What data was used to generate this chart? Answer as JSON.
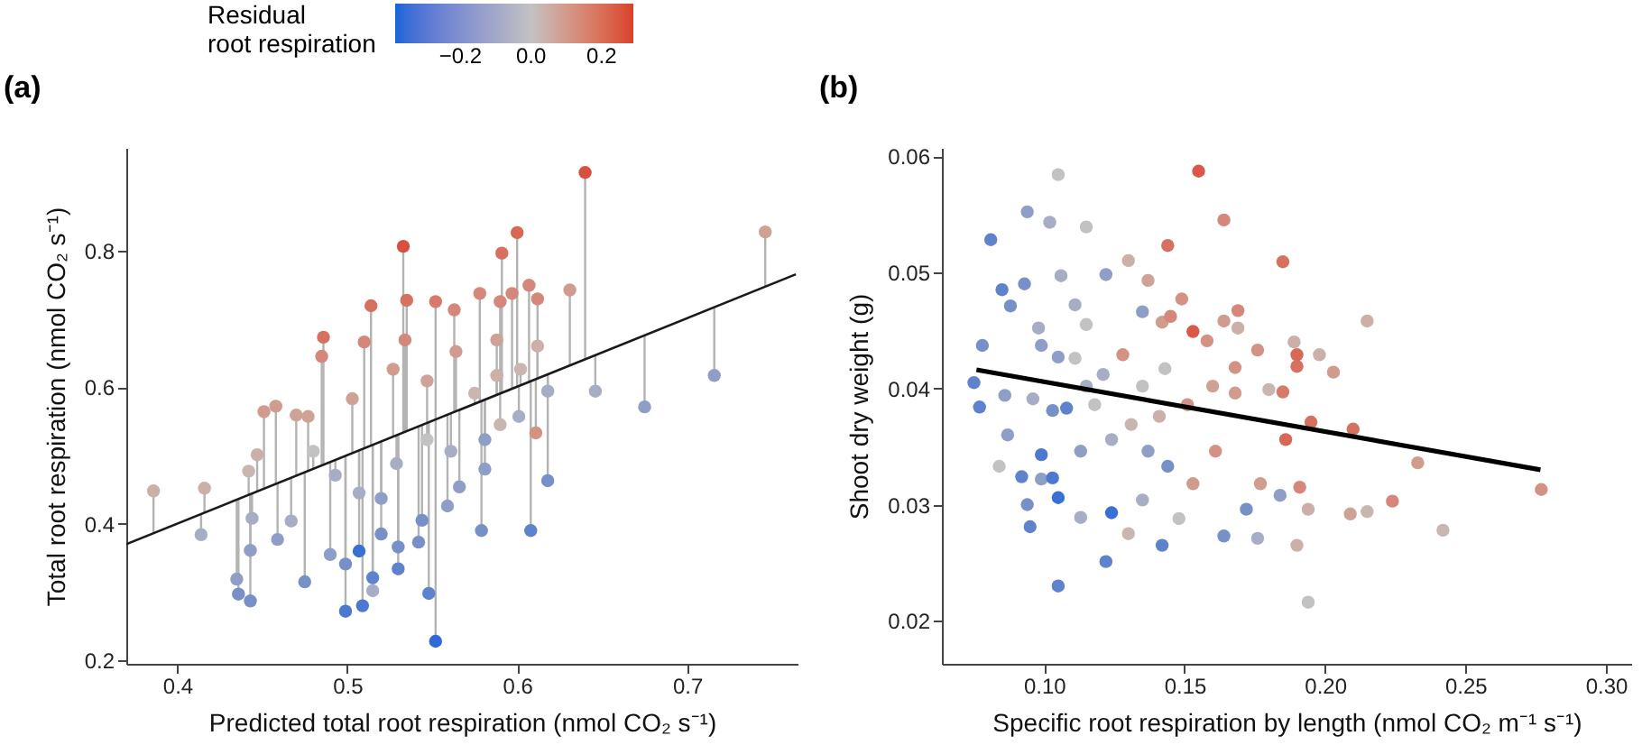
{
  "chart_data": [
    {
      "type": "scatter",
      "title": "(a)",
      "xlabel": "Predicted total root respiration (nmol CO₂ s⁻¹)",
      "ylabel": "Total root respiration (nmol CO₂ s⁻¹)",
      "legend_title": "Residual root respiration",
      "grid": false,
      "xlim": [
        0.37,
        0.765
      ],
      "ylim": [
        0.195,
        0.95
      ],
      "xticks": [
        0.4,
        0.5,
        0.6,
        0.7
      ],
      "yticks": [
        0.2,
        0.4,
        0.6,
        0.8
      ],
      "clim": [
        -0.385,
        0.29
      ],
      "cticks": [
        -0.2,
        {
          "value": 0,
          "label": "0.0"
        },
        0.2
      ],
      "series": [
        {
          "marker": "circle",
          "x": [
            0.386,
            0.416,
            0.414,
            0.64,
            0.746,
            0.716,
            0.675,
            0.646,
            0.631,
            0.533,
            0.591,
            0.6,
            0.514,
            0.486,
            0.485,
            0.51,
            0.535,
            0.552,
            0.578,
            0.607,
            0.597,
            0.59,
            0.563,
            0.451,
            0.458,
            0.447,
            0.442,
            0.47,
            0.477,
            0.435,
            0.436,
            0.443,
            0.443,
            0.444,
            0.459,
            0.475,
            0.467,
            0.499,
            0.509,
            0.507,
            0.552,
            0.548,
            0.515,
            0.515,
            0.53,
            0.499,
            0.49,
            0.52,
            0.53,
            0.542,
            0.544,
            0.559,
            0.579,
            0.608,
            0.618,
            0.611,
            0.601,
            0.618,
            0.59,
            0.581,
            0.566,
            0.529,
            0.507,
            0.493,
            0.48,
            0.52,
            0.547,
            0.561,
            0.575,
            0.547,
            0.527,
            0.503,
            0.534,
            0.564,
            0.588,
            0.612,
            0.612,
            0.588,
            0.602,
            0.581
          ],
          "values": [
            0.448,
            0.452,
            0.384,
            0.914,
            0.827,
            0.617,
            0.571,
            0.594,
            0.742,
            0.806,
            0.796,
            0.826,
            0.719,
            0.673,
            0.645,
            0.666,
            0.727,
            0.725,
            0.737,
            0.749,
            0.737,
            0.725,
            0.713,
            0.564,
            0.572,
            0.501,
            0.477,
            0.559,
            0.557,
            0.319,
            0.297,
            0.287,
            0.361,
            0.408,
            0.377,
            0.315,
            0.404,
            0.272,
            0.28,
            0.36,
            0.228,
            0.298,
            0.302,
            0.321,
            0.334,
            0.341,
            0.355,
            0.385,
            0.366,
            0.373,
            0.405,
            0.426,
            0.39,
            0.39,
            0.463,
            0.533,
            0.557,
            0.594,
            0.545,
            0.523,
            0.454,
            0.488,
            0.445,
            0.471,
            0.506,
            0.437,
            0.523,
            0.506,
            0.591,
            0.609,
            0.626,
            0.583,
            0.669,
            0.652,
            0.669,
            0.66,
            0.729,
            0.617,
            0.626,
            0.48
          ],
          "colors": [
            "#ccafa8",
            "#ccafa8",
            "#a7adc4",
            "#d8503f",
            "#cfa296",
            "#8e9ec6",
            "#8e9ec6",
            "#a7adc4",
            "#d19b8d",
            "#d8503f",
            "#d6705f",
            "#d76856",
            "#d6705f",
            "#d6705f",
            "#d4877a",
            "#d4877a",
            "#d6705f",
            "#d67a6b",
            "#d4877a",
            "#d4877a",
            "#d4877a",
            "#d4877a",
            "#d4877a",
            "#d19b8d",
            "#d19b8d",
            "#ccafa8",
            "#c9b6b1",
            "#cfa296",
            "#cfa296",
            "#8e9ec6",
            "#7890c8",
            "#7890c8",
            "#8e9ec6",
            "#a7adc4",
            "#8e9ec6",
            "#7890c8",
            "#a7adc4",
            "#4d78d0",
            "#4d78d0",
            "#3a6fd4",
            "#2f68d8",
            "#5f82cc",
            "#a7adc4",
            "#5f82cc",
            "#5f82cc",
            "#7890c8",
            "#8e9ec6",
            "#7890c8",
            "#7890c8",
            "#7890c8",
            "#7890c8",
            "#8e9ec6",
            "#7890c8",
            "#5f82cc",
            "#7890c8",
            "#d39283",
            "#a7adc4",
            "#a7adc4",
            "#c9b6b1",
            "#8e9ec6",
            "#8e9ec6",
            "#a7adc4",
            "#a7adc4",
            "#a7adc4",
            "#c2c2c2",
            "#8e9ec6",
            "#c2c2c2",
            "#a7adc4",
            "#c9b6b1",
            "#cfa296",
            "#d19b8d",
            "#cfa296",
            "#d4877a",
            "#d19b8d",
            "#cfa296",
            "#ccafa8",
            "#d4877a",
            "#ccafa8",
            "#c9b6b1",
            "#8e9ec6"
          ],
          "errors": [
            [
              0.386,
              0.448
            ],
            [
              0.416,
              0.452
            ],
            [
              0.384,
              0.414
            ],
            [
              0.64,
              0.914
            ],
            [
              0.746,
              0.827
            ],
            [
              0.617,
              0.716
            ],
            [
              0.571,
              0.675
            ],
            [
              0.594,
              0.646
            ],
            [
              0.631,
              0.742
            ],
            [
              0.533,
              0.806
            ],
            [
              0.591,
              0.796
            ],
            [
              0.6,
              0.826
            ],
            [
              0.514,
              0.719
            ],
            [
              0.486,
              0.673
            ],
            [
              0.485,
              0.645
            ],
            [
              0.51,
              0.666
            ],
            [
              0.535,
              0.727
            ],
            [
              0.552,
              0.725
            ],
            [
              0.578,
              0.737
            ],
            [
              0.607,
              0.749
            ],
            [
              0.597,
              0.737
            ],
            [
              0.59,
              0.725
            ],
            [
              0.563,
              0.713
            ],
            [
              0.451,
              0.564
            ],
            [
              0.458,
              0.572
            ],
            [
              0.447,
              0.501
            ],
            [
              0.442,
              0.477
            ],
            [
              0.47,
              0.559
            ],
            [
              0.477,
              0.557
            ],
            [
              0.319,
              0.435
            ],
            [
              0.297,
              0.436
            ],
            [
              0.287,
              0.443
            ],
            [
              0.361,
              0.443
            ],
            [
              0.408,
              0.444
            ],
            [
              0.377,
              0.459
            ],
            [
              0.315,
              0.475
            ],
            [
              0.404,
              0.467
            ],
            [
              0.272,
              0.499
            ],
            [
              0.28,
              0.509
            ],
            [
              0.36,
              0.507
            ],
            [
              0.228,
              0.552
            ],
            [
              0.298,
              0.548
            ],
            [
              0.302,
              0.515
            ],
            [
              0.321,
              0.515
            ],
            [
              0.334,
              0.53
            ],
            [
              0.341,
              0.499
            ],
            [
              0.355,
              0.49
            ],
            [
              0.385,
              0.52
            ],
            [
              0.366,
              0.53
            ],
            [
              0.373,
              0.542
            ],
            [
              0.405,
              0.544
            ],
            [
              0.426,
              0.559
            ],
            [
              0.39,
              0.579
            ],
            [
              0.39,
              0.608
            ],
            [
              0.463,
              0.618
            ],
            [
              0.533,
              0.611
            ],
            [
              0.557,
              0.601
            ],
            [
              0.594,
              0.618
            ],
            [
              0.545,
              0.59
            ],
            [
              0.523,
              0.581
            ],
            [
              0.454,
              0.566
            ],
            [
              0.488,
              0.529
            ],
            [
              0.445,
              0.507
            ],
            [
              0.471,
              0.493
            ],
            [
              0.48,
              0.506
            ],
            [
              0.437,
              0.52
            ],
            [
              0.523,
              0.547
            ],
            [
              0.506,
              0.561
            ],
            [
              0.575,
              0.591
            ],
            [
              0.547,
              0.609
            ],
            [
              0.527,
              0.626
            ],
            [
              0.503,
              0.583
            ],
            [
              0.534,
              0.669
            ],
            [
              0.564,
              0.652
            ],
            [
              0.588,
              0.669
            ],
            [
              0.612,
              0.66
            ],
            [
              0.612,
              0.729
            ],
            [
              0.588,
              0.617
            ],
            [
              0.602,
              0.626
            ],
            [
              0.48,
              0.581
            ]
          ]
        },
        {
          "type": "line",
          "color": "#1a1a1a",
          "x": [
            0.37,
            0.764
          ],
          "values": [
            0.37,
            0.765
          ]
        }
      ]
    },
    {
      "type": "scatter",
      "title": "(b)",
      "xlabel": "Specific root respiration by length (nmol CO₂ m⁻¹ s⁻¹)",
      "ylabel": "Shoot dry weight (g)",
      "grid": false,
      "xlim": [
        0.0636,
        0.309
      ],
      "ylim": [
        0.0163,
        0.0607
      ],
      "xticks": [
        {
          "value": 0.1,
          "label": "0.10"
        },
        0.15,
        {
          "value": 0.2,
          "label": "0.20"
        },
        0.25,
        {
          "value": 0.3,
          "label": "0.30"
        }
      ],
      "yticks": [
        0.02,
        0.03,
        0.04,
        0.05,
        0.06
      ],
      "series": [
        {
          "marker": "circle",
          "x": [
            0.155,
            0.105,
            0.094,
            0.081,
            0.102,
            0.115,
            0.164,
            0.144,
            0.185,
            0.085,
            0.093,
            0.088,
            0.078,
            0.075,
            0.077,
            0.106,
            0.122,
            0.13,
            0.137,
            0.149,
            0.135,
            0.111,
            0.098,
            0.115,
            0.142,
            0.145,
            0.169,
            0.164,
            0.169,
            0.215,
            0.153,
            0.158,
            0.176,
            0.189,
            0.19,
            0.198,
            0.203,
            0.19,
            0.168,
            0.128,
            0.105,
            0.099,
            0.111,
            0.115,
            0.096,
            0.086,
            0.103,
            0.108,
            0.099,
            0.087,
            0.084,
            0.092,
            0.099,
            0.103,
            0.105,
            0.094,
            0.095,
            0.105,
            0.113,
            0.124,
            0.122,
            0.13,
            0.142,
            0.135,
            0.148,
            0.164,
            0.172,
            0.176,
            0.184,
            0.19,
            0.194,
            0.194,
            0.209,
            0.215,
            0.224,
            0.233,
            0.242,
            0.277,
            0.21,
            0.195,
            0.186,
            0.191,
            0.177,
            0.161,
            0.153,
            0.144,
            0.151,
            0.141,
            0.131,
            0.124,
            0.113,
            0.137,
            0.143,
            0.135,
            0.16,
            0.168,
            0.18,
            0.185,
            0.118,
            0.121
          ],
          "values": [
            0.0587,
            0.0584,
            0.0552,
            0.0528,
            0.0543,
            0.0539,
            0.0545,
            0.0523,
            0.0509,
            0.0485,
            0.049,
            0.0471,
            0.0437,
            0.0405,
            0.0384,
            0.0497,
            0.0498,
            0.051,
            0.0493,
            0.0477,
            0.0466,
            0.0472,
            0.0452,
            0.0455,
            0.0457,
            0.0462,
            0.0467,
            0.0458,
            0.0452,
            0.0458,
            0.0449,
            0.0441,
            0.0433,
            0.044,
            0.0429,
            0.0429,
            0.0414,
            0.0419,
            0.0418,
            0.0429,
            0.0427,
            0.0437,
            0.0426,
            0.0402,
            0.0391,
            0.0394,
            0.0381,
            0.0383,
            0.0343,
            0.036,
            0.0333,
            0.0324,
            0.0322,
            0.0323,
            0.0306,
            0.03,
            0.0281,
            0.023,
            0.0289,
            0.0293,
            0.0251,
            0.0275,
            0.0265,
            0.0304,
            0.0288,
            0.0273,
            0.0296,
            0.0271,
            0.0308,
            0.0265,
            0.0216,
            0.0296,
            0.0292,
            0.0294,
            0.0303,
            0.0336,
            0.0278,
            0.0313,
            0.0365,
            0.0371,
            0.0356,
            0.0315,
            0.0318,
            0.0346,
            0.0318,
            0.0333,
            0.0386,
            0.0376,
            0.0369,
            0.0356,
            0.0346,
            0.0346,
            0.0417,
            0.0402,
            0.0402,
            0.0396,
            0.0399,
            0.0397,
            0.0386,
            0.0412
          ],
          "colors": [
            "#d8594a",
            "#c2c2c2",
            "#8e9ec6",
            "#5f82cc",
            "#a7adc4",
            "#c2c2c2",
            "#d4877a",
            "#d6705f",
            "#d6705f",
            "#5f82cc",
            "#7890c8",
            "#7890c8",
            "#7890c8",
            "#5f82cc",
            "#5f82cc",
            "#a7adc4",
            "#8e9ec6",
            "#ccafa8",
            "#cfa296",
            "#d39283",
            "#8e9ec6",
            "#a7adc4",
            "#a7adc4",
            "#c2c2c2",
            "#d19b8d",
            "#d4877a",
            "#d4877a",
            "#d19b8d",
            "#ccafa8",
            "#ccafa8",
            "#d8594a",
            "#d39283",
            "#d39283",
            "#ccafa8",
            "#d76856",
            "#ccafa8",
            "#d19b8d",
            "#d6705f",
            "#d39283",
            "#d39283",
            "#8e9ec6",
            "#8e9ec6",
            "#c2c2c2",
            "#a7adc4",
            "#a7adc4",
            "#8e9ec6",
            "#7890c8",
            "#5f82cc",
            "#4d78d0",
            "#8e9ec6",
            "#c2c2c2",
            "#5f82cc",
            "#8e9ec6",
            "#4d78d0",
            "#3a6fd4",
            "#7890c8",
            "#5f82cc",
            "#5f82cc",
            "#a7adc4",
            "#3a6fd4",
            "#5f82cc",
            "#c9b6b1",
            "#5f82cc",
            "#a7adc4",
            "#c2c2c2",
            "#7890c8",
            "#7890c8",
            "#a7adc4",
            "#8e9ec6",
            "#ccafa8",
            "#c2c2c2",
            "#ccafa8",
            "#cfa296",
            "#c9b6b1",
            "#d4877a",
            "#d19b8d",
            "#c9b6b1",
            "#d39283",
            "#d6705f",
            "#d6705f",
            "#d76856",
            "#d4877a",
            "#d19b8d",
            "#d39283",
            "#d19b8d",
            "#7890c8",
            "#d39283",
            "#ccafa8",
            "#c9b6b1",
            "#a7adc4",
            "#8e9ec6",
            "#8e9ec6",
            "#c2c2c2",
            "#c2c2c2",
            "#cfa296",
            "#d19b8d",
            "#c9b6b1",
            "#d67a6b",
            "#c2c2c2",
            "#a7adc4"
          ]
        },
        {
          "type": "line",
          "color": "#000000",
          "x": [
            0.0759,
            0.2767
          ],
          "values": [
            0.0416,
            0.033
          ]
        }
      ]
    }
  ]
}
